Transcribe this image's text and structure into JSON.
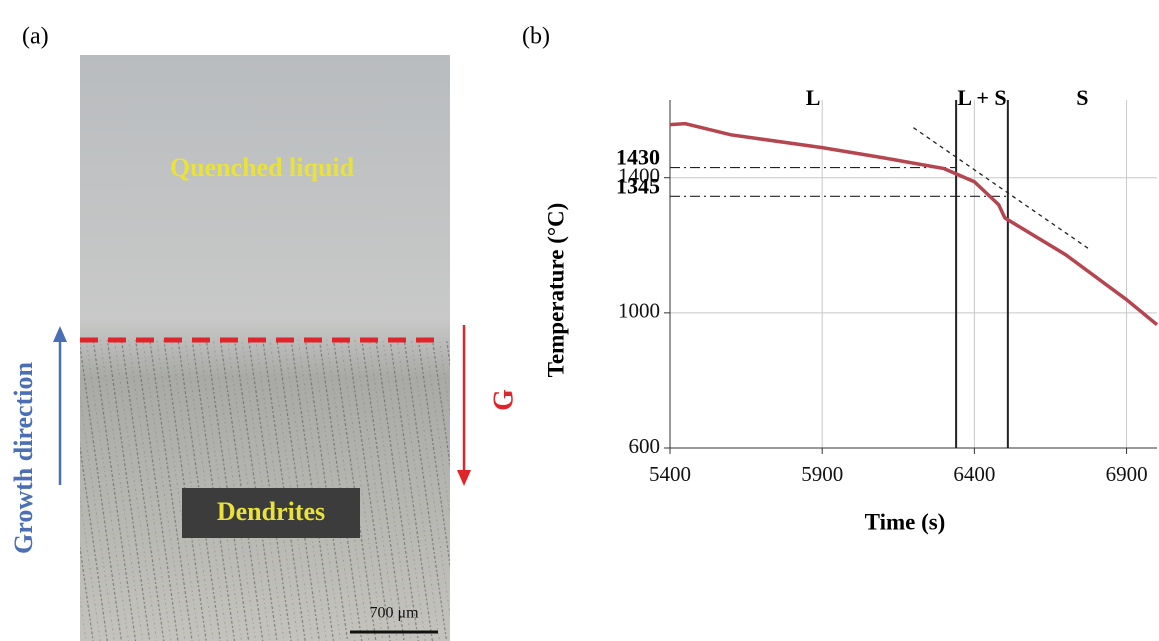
{
  "panel_a": {
    "label": "(a)",
    "top_label": "Quenched liquid",
    "bottom_label": "Dendrites",
    "scale_bar": "700 μm",
    "growth_label": "Growth direction",
    "gradient_label": "G"
  },
  "chart_data": {
    "type": "line",
    "panel_label": "(b)",
    "xlabel": "Time (s)",
    "ylabel": "Temperature (°C)",
    "x": [
      5400,
      5450,
      5600,
      5900,
      6100,
      6300,
      6400,
      6480,
      6500,
      6700,
      6900,
      7000
    ],
    "values": [
      1557,
      1560,
      1527,
      1489,
      1459,
      1427,
      1388,
      1320,
      1281,
      1172,
      1039,
      965
    ],
    "color": "#b5454f",
    "xlim": [
      5400,
      7000
    ],
    "ylim": [
      600,
      1630
    ],
    "xticks": [
      5400,
      5900,
      6400,
      6900
    ],
    "yticks": [
      600,
      1000,
      1400
    ],
    "grid": true,
    "phase_boundaries": [
      6340,
      6510
    ],
    "regions": [
      "L",
      "L + S",
      "S"
    ],
    "annotations": [
      {
        "value": 1430,
        "label": "1430"
      },
      {
        "value": 1345,
        "label": "1345"
      }
    ],
    "tangent": {
      "x": [
        6200,
        6780
      ],
      "y": [
        1548,
        1187
      ]
    }
  }
}
